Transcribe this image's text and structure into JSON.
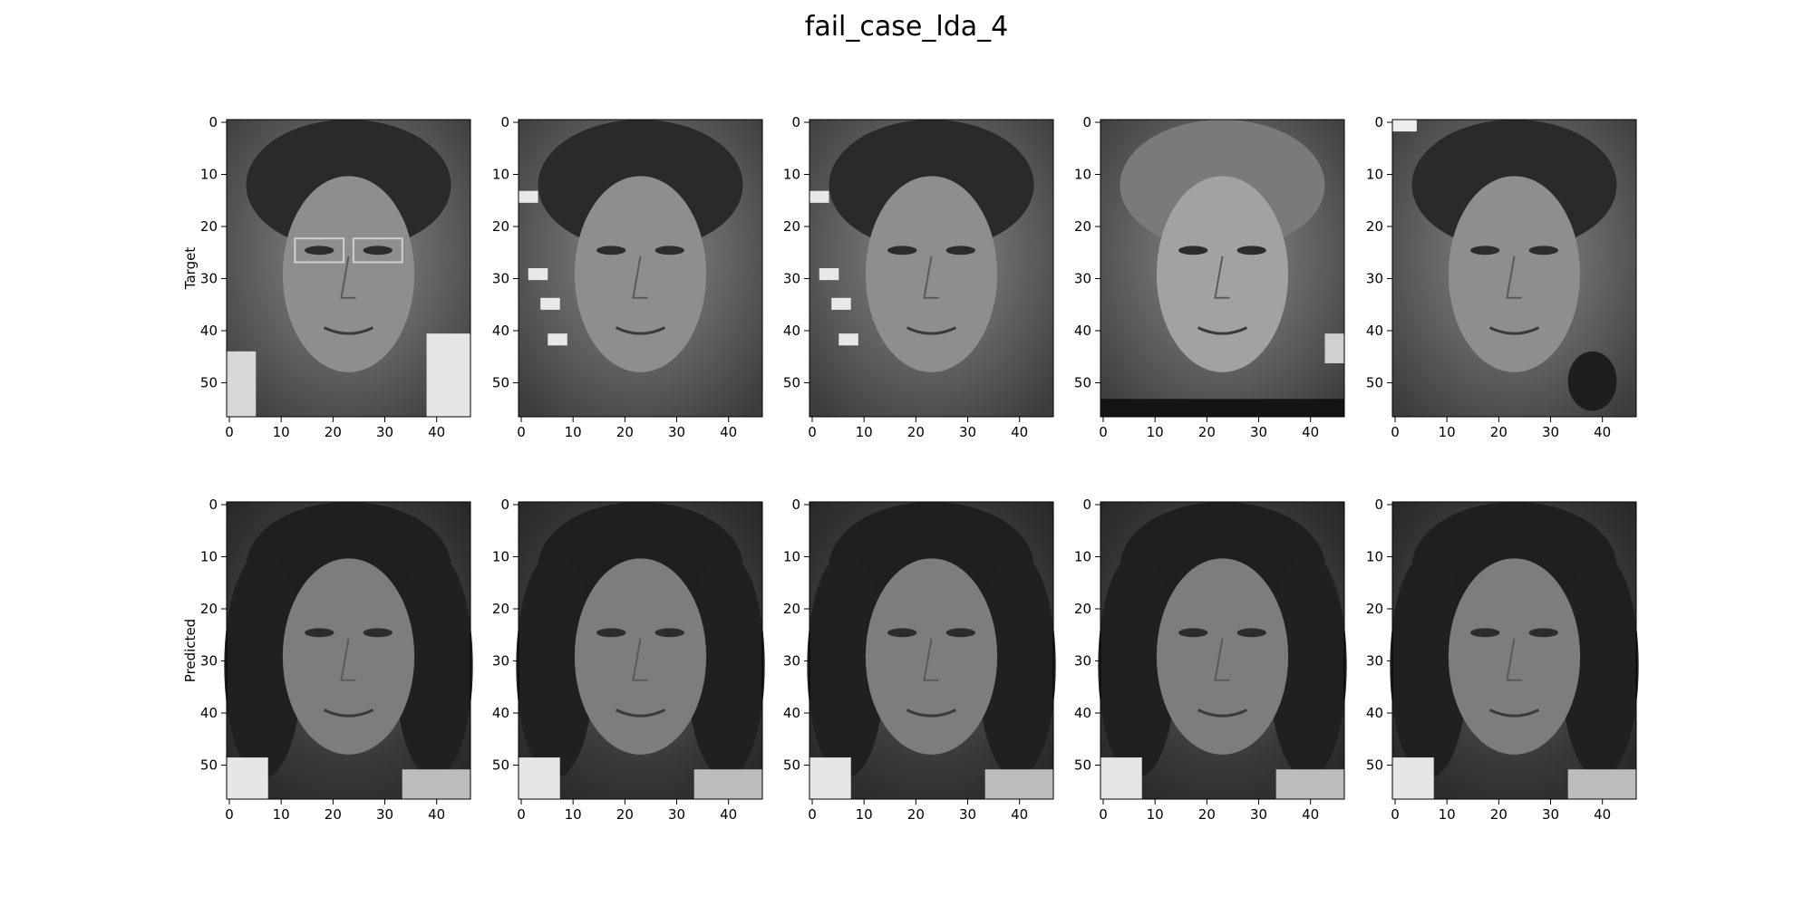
{
  "figure": {
    "title": "fail_case_lda_4",
    "row_labels": [
      "Target",
      "Predicted"
    ],
    "columns": 5,
    "image_kind": "grayscale face image",
    "x_ticks": [
      0,
      10,
      20,
      30,
      40
    ],
    "y_ticks": [
      0,
      10,
      20,
      30,
      40,
      50
    ],
    "x_range": [
      0,
      46
    ],
    "y_range": [
      0,
      56
    ]
  },
  "panels": [
    {
      "row": "Target",
      "index": 1,
      "content": "older woman with glasses"
    },
    {
      "row": "Target",
      "index": 2,
      "content": "woman with short hair"
    },
    {
      "row": "Target",
      "index": 3,
      "content": "woman with short hair"
    },
    {
      "row": "Target",
      "index": 4,
      "content": "older woman"
    },
    {
      "row": "Target",
      "index": 5,
      "content": "young woman"
    },
    {
      "row": "Predicted",
      "index": 1,
      "content": "woman with curly hair"
    },
    {
      "row": "Predicted",
      "index": 2,
      "content": "woman with curly hair"
    },
    {
      "row": "Predicted",
      "index": 3,
      "content": "woman with curly hair"
    },
    {
      "row": "Predicted",
      "index": 4,
      "content": "woman with curly hair"
    },
    {
      "row": "Predicted",
      "index": 5,
      "content": "woman with curly hair"
    }
  ]
}
